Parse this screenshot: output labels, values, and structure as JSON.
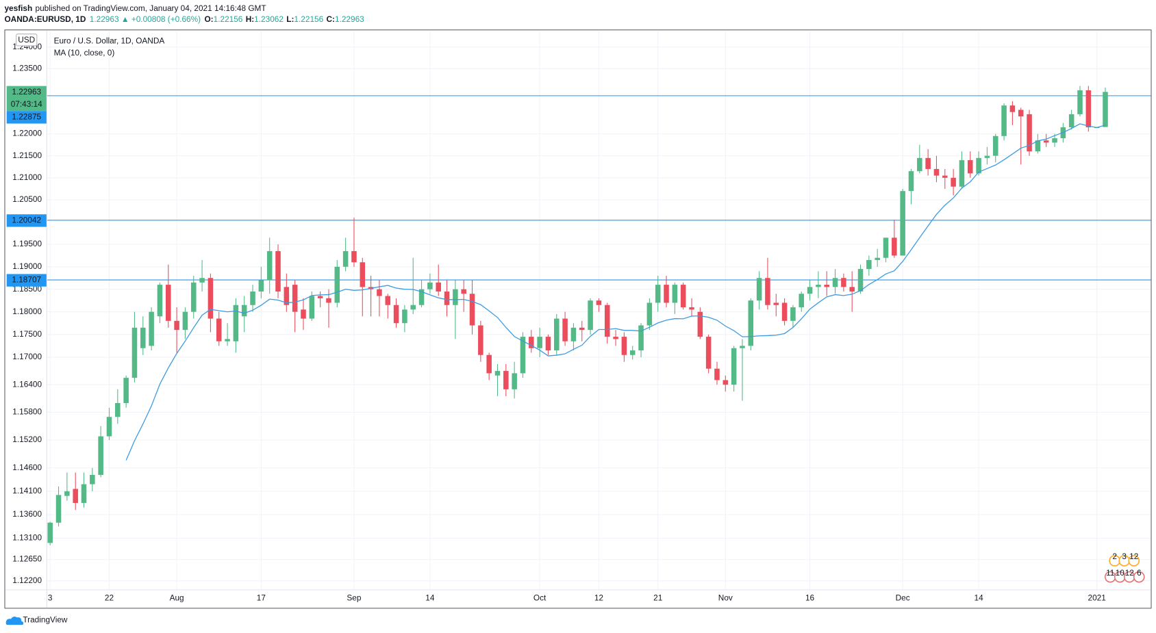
{
  "header": {
    "publisher": "yesfish",
    "published": "published on TradingView.com, January 04, 2021 14:16:48 GMT",
    "symbol": "OANDA:EURUSD, 1D",
    "quote": "1.22963 ▲ +0.00808 (+0.66%)",
    "ohlc": [
      [
        "O:",
        "1.22156"
      ],
      [
        "H:",
        "1.23062"
      ],
      [
        "L:",
        "1.22156"
      ],
      [
        "C:",
        "1.22963"
      ]
    ]
  },
  "footer": "TradingView",
  "chart_data": {
    "type": "candlestick",
    "title": "Euro / U.S. Dollar, 1D, OANDA",
    "currency": "USD",
    "indicator": {
      "name": "MA (10, close, 0)",
      "period": 10,
      "color": "#3a9be3"
    },
    "up_color": "#53b987",
    "down_color": "#eb4d5c",
    "log": true,
    "grid": true,
    "categories": [
      "3",
      null,
      null,
      null,
      null,
      null,
      null,
      "22",
      null,
      null,
      null,
      null,
      null,
      null,
      null,
      "Aug",
      null,
      null,
      null,
      null,
      null,
      null,
      null,
      null,
      null,
      "17",
      null,
      null,
      null,
      null,
      null,
      null,
      null,
      null,
      null,
      null,
      "Sep",
      null,
      null,
      null,
      null,
      null,
      null,
      null,
      null,
      "14",
      null,
      null,
      null,
      null,
      null,
      null,
      null,
      null,
      null,
      null,
      null,
      null,
      "Oct",
      null,
      null,
      null,
      null,
      null,
      null,
      "12",
      null,
      null,
      null,
      null,
      null,
      null,
      "21",
      null,
      null,
      null,
      null,
      null,
      null,
      null,
      "Nov",
      null,
      null,
      null,
      null,
      null,
      null,
      null,
      null,
      null,
      "16",
      null,
      null,
      null,
      null,
      null,
      null,
      null,
      null,
      null,
      null,
      "Dec",
      null,
      null,
      null,
      null,
      null,
      null,
      null,
      null,
      "14",
      null,
      null,
      null,
      null,
      null,
      null,
      null,
      null,
      null,
      null,
      null,
      null,
      null,
      "2021",
      null
    ],
    "open": [
      1.13,
      1.1343,
      1.14,
      1.1415,
      1.1385,
      1.1425,
      1.1445,
      1.1528,
      1.157,
      1.16,
      1.1655,
      1.172,
      1.1725,
      1.179,
      1.186,
      1.178,
      1.176,
      1.18,
      1.1865,
      1.1875,
      1.1785,
      1.1735,
      1.1735,
      1.179,
      1.1815,
      1.1845,
      1.187,
      1.1935,
      1.1855,
      1.186,
      1.1805,
      1.1785,
      1.1835,
      1.183,
      1.182,
      1.19,
      1.1935,
      1.191,
      1.1855,
      1.185,
      1.1835,
      1.1815,
      1.1775,
      1.1805,
      1.1815,
      1.185,
      1.1865,
      1.1845,
      1.1815,
      1.185,
      1.184,
      1.177,
      1.1705,
      1.166,
      1.167,
      1.163,
      1.1665,
      1.1745,
      1.172,
      1.1745,
      1.1715,
      1.1785,
      1.1735,
      1.1765,
      1.176,
      1.1825,
      1.1815,
      1.1745,
      1.1745,
      1.1705,
      1.1715,
      1.177,
      1.182,
      1.186,
      1.182,
      1.186,
      1.181,
      1.18,
      1.1745,
      1.1675,
      1.165,
      1.164,
      1.172,
      1.1725,
      1.1825,
      1.1875,
      1.182,
      1.182,
      1.178,
      1.181,
      1.184,
      1.1855,
      1.186,
      1.1855,
      1.1875,
      1.1855,
      1.1845,
      1.1895,
      1.1915,
      1.192,
      1.1965,
      1.1925,
      1.207,
      1.2115,
      1.2145,
      1.212,
      1.2105,
      1.21,
      1.208,
      1.214,
      1.211,
      1.2145,
      1.215,
      1.2195,
      1.2265,
      1.2255,
      1.2245,
      1.216,
      1.2185,
      1.218,
      1.219,
      1.2215,
      1.2245,
      1.23,
      1.2215,
      1.22156
    ],
    "high": [
      1.1345,
      1.142,
      1.145,
      1.145,
      1.145,
      1.146,
      1.155,
      1.159,
      1.163,
      1.166,
      1.18,
      1.179,
      1.181,
      1.1865,
      1.1905,
      1.181,
      1.181,
      1.188,
      1.1915,
      1.1885,
      1.18,
      1.1775,
      1.183,
      1.1835,
      1.186,
      1.19,
      1.1965,
      1.195,
      1.1885,
      1.187,
      1.183,
      1.1845,
      1.1845,
      1.185,
      1.1915,
      1.1965,
      1.201,
      1.192,
      1.188,
      1.187,
      1.184,
      1.183,
      1.1815,
      1.192,
      1.187,
      1.1885,
      1.1905,
      1.187,
      1.187,
      1.187,
      1.187,
      1.178,
      1.171,
      1.1685,
      1.1685,
      1.169,
      1.1755,
      1.176,
      1.1765,
      1.175,
      1.1795,
      1.18,
      1.1775,
      1.178,
      1.183,
      1.183,
      1.182,
      1.176,
      1.1755,
      1.1725,
      1.1775,
      1.183,
      1.188,
      1.188,
      1.1865,
      1.1865,
      1.183,
      1.181,
      1.175,
      1.169,
      1.166,
      1.1725,
      1.174,
      1.183,
      1.189,
      1.192,
      1.184,
      1.183,
      1.1815,
      1.1845,
      1.187,
      1.189,
      1.189,
      1.1895,
      1.1885,
      1.189,
      1.1905,
      1.1925,
      1.194,
      1.1965,
      1.2005,
      1.2075,
      1.212,
      1.2175,
      1.2165,
      1.215,
      1.212,
      1.212,
      1.216,
      1.216,
      1.216,
      1.217,
      1.22,
      1.227,
      1.2275,
      1.226,
      1.2255,
      1.22,
      1.22,
      1.22,
      1.2225,
      1.2255,
      1.231,
      1.231,
      1.2216,
      1.23062
    ],
    "low": [
      1.1295,
      1.1335,
      1.139,
      1.137,
      1.1375,
      1.141,
      1.144,
      1.152,
      1.1555,
      1.159,
      1.1645,
      1.1705,
      1.1715,
      1.1775,
      1.1765,
      1.171,
      1.174,
      1.1785,
      1.1845,
      1.1755,
      1.1725,
      1.1725,
      1.171,
      1.1755,
      1.18,
      1.183,
      1.184,
      1.183,
      1.18,
      1.1755,
      1.176,
      1.178,
      1.181,
      1.1765,
      1.181,
      1.189,
      1.19,
      1.179,
      1.179,
      1.179,
      1.1785,
      1.1765,
      1.1755,
      1.1795,
      1.181,
      1.184,
      1.1835,
      1.179,
      1.174,
      1.18,
      1.175,
      1.169,
      1.165,
      1.1615,
      1.1615,
      1.161,
      1.1655,
      1.171,
      1.17,
      1.1705,
      1.1705,
      1.1725,
      1.1715,
      1.1735,
      1.175,
      1.18,
      1.173,
      1.1725,
      1.169,
      1.1695,
      1.17,
      1.176,
      1.18,
      1.181,
      1.1795,
      1.1805,
      1.179,
      1.174,
      1.1665,
      1.164,
      1.1625,
      1.1625,
      1.1605,
      1.1715,
      1.1805,
      1.1805,
      1.179,
      1.177,
      1.1765,
      1.18,
      1.1825,
      1.183,
      1.1835,
      1.184,
      1.1845,
      1.18,
      1.184,
      1.188,
      1.19,
      1.191,
      1.192,
      1.1925,
      1.204,
      1.211,
      1.2105,
      1.209,
      1.2075,
      1.206,
      1.2075,
      1.21,
      1.2105,
      1.213,
      1.2135,
      1.2185,
      1.222,
      1.213,
      1.215,
      1.2155,
      1.217,
      1.217,
      1.218,
      1.221,
      1.224,
      1.2205,
      1.2214,
      1.22156
    ],
    "close": [
      1.1343,
      1.1402,
      1.141,
      1.1385,
      1.1425,
      1.1445,
      1.1528,
      1.157,
      1.16,
      1.1655,
      1.1765,
      1.1765,
      1.18,
      1.186,
      1.178,
      1.176,
      1.18,
      1.1865,
      1.1875,
      1.1785,
      1.1735,
      1.174,
      1.1815,
      1.1815,
      1.1845,
      1.187,
      1.1935,
      1.1845,
      1.1815,
      1.18,
      1.1785,
      1.1835,
      1.183,
      1.182,
      1.19,
      1.1935,
      1.191,
      1.1855,
      1.185,
      1.1835,
      1.1815,
      1.1775,
      1.1805,
      1.1815,
      1.185,
      1.1865,
      1.1845,
      1.1815,
      1.185,
      1.184,
      1.177,
      1.1705,
      1.1665,
      1.167,
      1.163,
      1.1665,
      1.1745,
      1.172,
      1.1745,
      1.1715,
      1.1785,
      1.1735,
      1.1765,
      1.176,
      1.1825,
      1.1815,
      1.1745,
      1.174,
      1.1705,
      1.1715,
      1.177,
      1.182,
      1.186,
      1.182,
      1.186,
      1.181,
      1.1805,
      1.1745,
      1.1675,
      1.165,
      1.164,
      1.172,
      1.1725,
      1.1825,
      1.1875,
      1.1815,
      1.1815,
      1.178,
      1.181,
      1.184,
      1.1855,
      1.186,
      1.1855,
      1.1875,
      1.1855,
      1.1845,
      1.1895,
      1.1915,
      1.192,
      1.1965,
      1.1925,
      1.207,
      1.2115,
      1.2145,
      1.212,
      1.2105,
      1.21,
      1.208,
      1.214,
      1.211,
      1.2145,
      1.215,
      1.2195,
      1.2265,
      1.225,
      1.224,
      1.216,
      1.2185,
      1.218,
      1.219,
      1.2215,
      1.2245,
      1.23,
      1.2215,
      1.2215,
      1.22963
    ],
    "ylim": [
      1.1202,
      1.2439
    ],
    "yticks": [
      {
        "value": 1.24,
        "label": "1.24000"
      },
      {
        "value": 1.235,
        "label": "1.23500"
      },
      {
        "value": 1.22,
        "label": "1.22000"
      },
      {
        "value": 1.215,
        "label": "1.21500"
      },
      {
        "value": 1.21,
        "label": "1.21000"
      },
      {
        "value": 1.205,
        "label": "1.20500"
      },
      {
        "value": 1.195,
        "label": "1.19500"
      },
      {
        "value": 1.19,
        "label": "1.19000"
      },
      {
        "value": 1.185,
        "label": "1.18500"
      },
      {
        "value": 1.18,
        "label": "1.18000"
      },
      {
        "value": 1.175,
        "label": "1.17500"
      },
      {
        "value": 1.17,
        "label": "1.17000"
      },
      {
        "value": 1.164,
        "label": "1.16400"
      },
      {
        "value": 1.158,
        "label": "1.15800"
      },
      {
        "value": 1.152,
        "label": "1.15200"
      },
      {
        "value": 1.146,
        "label": "1.14600"
      },
      {
        "value": 1.141,
        "label": "1.14100"
      },
      {
        "value": 1.136,
        "label": "1.13600"
      },
      {
        "value": 1.131,
        "label": "1.13100"
      },
      {
        "value": 1.1265,
        "label": "1.12650"
      },
      {
        "value": 1.122,
        "label": "1.12200"
      }
    ],
    "last_price": 1.22963,
    "countdown": "07:43:14",
    "hlines": [
      1.22875,
      1.20042,
      1.18707
    ],
    "hline_color": "#2196f3",
    "events": [
      [
        "2",
        "3",
        "12"
      ],
      [
        "11",
        "10",
        "12",
        "6"
      ]
    ]
  }
}
